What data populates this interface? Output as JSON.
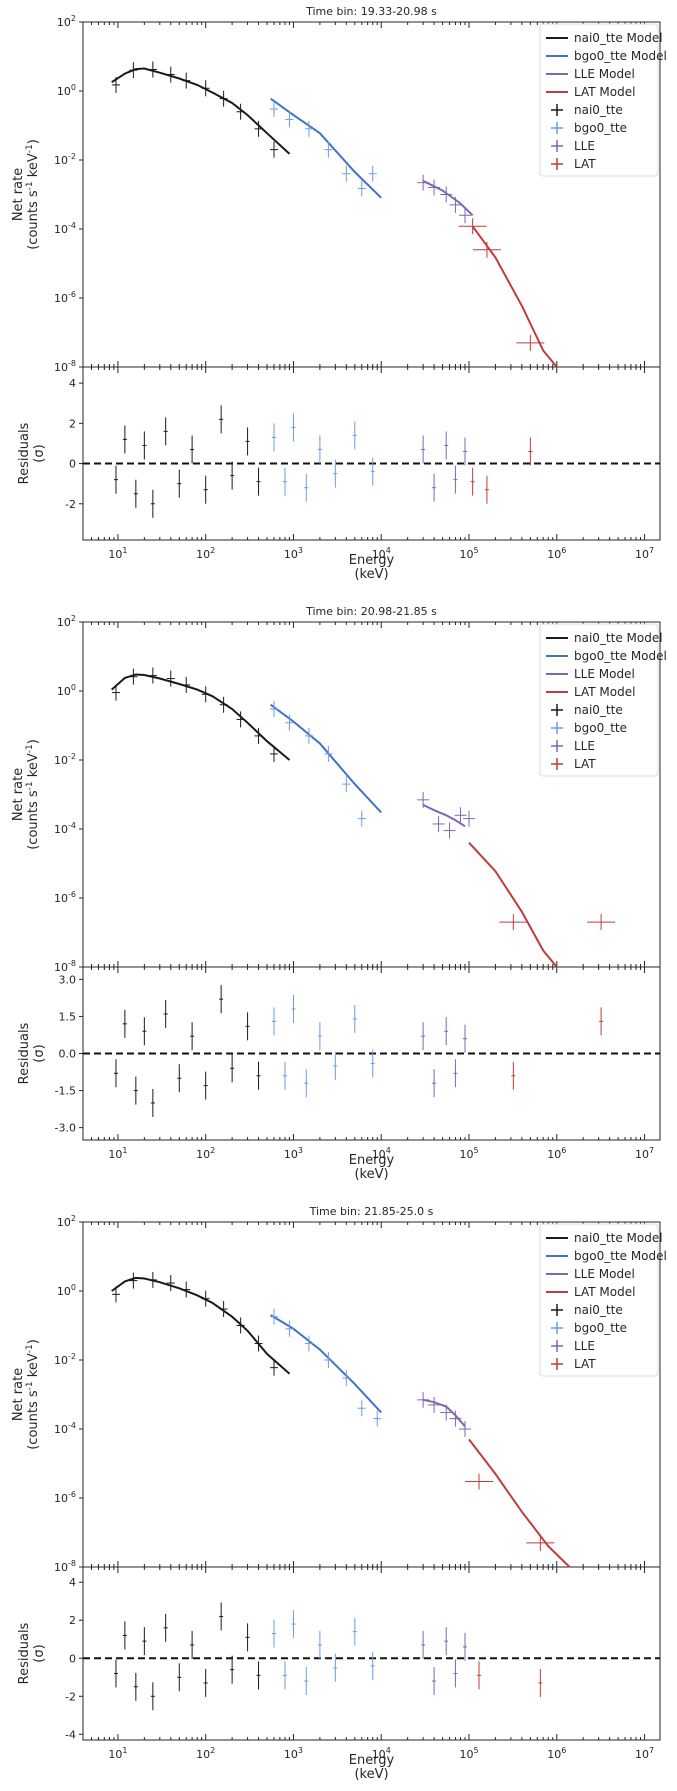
{
  "figure": {
    "x_label_line1": "Energy",
    "x_label_line2": "(keV)",
    "spectrum_ylabel_line1": "Net rate",
    "spectrum_ylabel_line2": "(counts s",
    "spectrum_ylabel_sup1": "-1",
    "spectrum_ylabel_mid": " keV",
    "spectrum_ylabel_sup2": "-1",
    "spectrum_ylabel_end": ")",
    "residual_ylabel_line1": "Residuals",
    "residual_ylabel_line2": "(σ)"
  },
  "legend": [
    "nai0_tte Model",
    "bgo0_tte Model",
    "LLE Model",
    "LAT Model",
    "nai0_tte",
    "bgo0_tte",
    "LLE",
    "LAT"
  ],
  "colors": {
    "nai0_tte": "#1a1a1a",
    "bgo0_tte": "#3b73c8",
    "bgo0_tte_points": "#6f9be0",
    "LLE": "#7b68b0",
    "LAT": "#c23b3b"
  },
  "chart_data": [
    {
      "type": "scatter",
      "title": "Time bin: 19.33-20.98 s",
      "xscale": "log",
      "xlim": [
        4,
        15000000
      ],
      "x_ticks": [
        "10^1",
        "10^2",
        "10^3",
        "10^4",
        "10^5",
        "10^6",
        "10^7"
      ],
      "spectrum": {
        "yscale": "log",
        "ylim": [
          1e-08,
          100
        ],
        "y_ticks": [
          "10^2",
          "10^0",
          "10^-2",
          "10^-4",
          "10^-6",
          "10^-8"
        ],
        "models": [
          {
            "name": "nai0_tte Model",
            "x": [
              8.5,
              12,
              16,
              20,
              30,
              50,
              80,
              120,
              200,
              300,
              500,
              900
            ],
            "y": [
              1.8,
              3.2,
              4.3,
              4.5,
              3.4,
              2.3,
              1.5,
              0.9,
              0.45,
              0.2,
              0.06,
              0.015
            ]
          },
          {
            "name": "bgo0_tte Model",
            "x": [
              550,
              1000,
              2000,
              5000,
              10000
            ],
            "y": [
              0.6,
              0.2,
              0.06,
              0.0045,
              0.0008
            ]
          },
          {
            "name": "LLE Model",
            "x": [
              30000,
              50000,
              80000,
              110000
            ],
            "y": [
              0.0025,
              0.0013,
              0.00055,
              0.00025
            ]
          },
          {
            "name": "LAT Model",
            "x": [
              110000,
              200000,
              400000,
              700000,
              1000000
            ],
            "y": [
              0.00012,
              1.5e-05,
              6e-07,
              3e-08,
              1e-08
            ]
          }
        ],
        "points": [
          {
            "name": "nai0_tte",
            "x": [
              9.5,
              15,
              25,
              40,
              60,
              100,
              160,
              250,
              400,
              600
            ],
            "y": [
              1.5,
              4,
              4.2,
              3,
              2,
              1.2,
              0.6,
              0.25,
              0.08,
              0.02
            ]
          },
          {
            "name": "bgo0_tte",
            "x": [
              600,
              900,
              1500,
              2500,
              4000,
              6000,
              8000
            ],
            "y": [
              0.3,
              0.15,
              0.08,
              0.02,
              0.004,
              0.0015,
              0.004
            ]
          },
          {
            "name": "LLE",
            "x": [
              30000,
              40000,
              55000,
              70000,
              90000
            ],
            "y": [
              0.0022,
              0.0016,
              0.001,
              0.0005,
              0.00025
            ]
          },
          {
            "name": "LAT",
            "x": [
              110000,
              160000,
              500000
            ],
            "y": [
              0.00012,
              2.5e-05,
              5e-08
            ]
          }
        ]
      },
      "residuals": {
        "ylim": [
          -3.8,
          4.8
        ],
        "y_ticks": [
          "4",
          "2",
          "0",
          "-2"
        ],
        "nai0_tte": {
          "x": [
            9.5,
            12,
            16,
            20,
            25,
            35,
            50,
            70,
            100,
            150,
            200,
            300,
            400
          ],
          "y": [
            -0.8,
            1.2,
            -1.5,
            0.9,
            -2,
            1.6,
            -1,
            0.7,
            -1.3,
            2.2,
            -0.6,
            1.1,
            -0.9
          ]
        },
        "bgo0_tte": {
          "x": [
            600,
            800,
            1000,
            1400,
            2000,
            3000,
            5000,
            8000
          ],
          "y": [
            1.3,
            -0.9,
            1.8,
            -1.2,
            0.7,
            -0.5,
            1.4,
            -0.4
          ]
        },
        "LLE": {
          "x": [
            30000,
            40000,
            55000,
            70000,
            90000
          ],
          "y": [
            0.7,
            -1.2,
            0.9,
            -0.8,
            0.6
          ]
        },
        "LAT": {
          "x": [
            110000,
            160000,
            500000
          ],
          "y": [
            -0.9,
            -1.3,
            0.6
          ]
        }
      }
    },
    {
      "type": "scatter",
      "title": "Time bin: 20.98-21.85 s",
      "xscale": "log",
      "xlim": [
        4,
        15000000
      ],
      "x_ticks": [
        "10^1",
        "10^2",
        "10^3",
        "10^4",
        "10^5",
        "10^6",
        "10^7"
      ],
      "spectrum": {
        "yscale": "log",
        "ylim": [
          1e-08,
          100
        ],
        "y_ticks": [
          "10^2",
          "10^0",
          "10^-2",
          "10^-4",
          "10^-6",
          "10^-8"
        ],
        "models": [
          {
            "name": "nai0_tte Model",
            "x": [
              8.5,
              12,
              16,
              20,
              30,
              50,
              80,
              120,
              200,
              300,
              500,
              900
            ],
            "y": [
              1.1,
              2.4,
              3,
              2.9,
              2.3,
              1.6,
              1.1,
              0.7,
              0.3,
              0.12,
              0.035,
              0.01
            ]
          },
          {
            "name": "bgo0_tte Model",
            "x": [
              550,
              1000,
              2000,
              5000,
              10000
            ],
            "y": [
              0.4,
              0.13,
              0.03,
              0.002,
              0.0003
            ]
          },
          {
            "name": "LLE Model",
            "x": [
              30000,
              40000,
              55000,
              70000,
              90000
            ],
            "y": [
              0.0005,
              0.00035,
              0.00025,
              0.00018,
              0.00012
            ]
          },
          {
            "name": "LAT Model",
            "x": [
              100000,
              200000,
              400000,
              700000,
              1000000
            ],
            "y": [
              4e-05,
              6e-06,
              4e-07,
              3e-08,
              1e-08
            ]
          }
        ],
        "points": [
          {
            "name": "nai0_tte",
            "x": [
              9.5,
              15,
              25,
              40,
              60,
              100,
              160,
              250,
              400,
              600
            ],
            "y": [
              0.9,
              2.6,
              2.8,
              2.3,
              1.5,
              0.8,
              0.4,
              0.15,
              0.05,
              0.015
            ]
          },
          {
            "name": "bgo0_tte",
            "x": [
              600,
              900,
              1500,
              2500,
              4000,
              6000
            ],
            "y": [
              0.3,
              0.12,
              0.05,
              0.015,
              0.002,
              0.0002
            ]
          },
          {
            "name": "LLE",
            "x": [
              30000,
              45000,
              60000,
              80000,
              100000
            ],
            "y": [
              0.0007,
              0.00014,
              9e-05,
              0.00025,
              0.0002
            ]
          },
          {
            "name": "LAT",
            "x": [
              320000,
              3200000
            ],
            "y": [
              2e-07,
              2e-07
            ]
          }
        ]
      },
      "residuals": {
        "ylim": [
          -3.5,
          3.5
        ],
        "y_ticks": [
          "3.0",
          "1.5",
          "0.0",
          "-1.5",
          "-3.0"
        ],
        "nai0_tte": {
          "x": [
            9.5,
            12,
            16,
            20,
            25,
            35,
            50,
            70,
            100,
            150,
            200,
            300,
            400
          ],
          "y": [
            -0.8,
            1.2,
            -1.5,
            0.9,
            -2,
            1.6,
            -1,
            0.7,
            -1.3,
            2.2,
            -0.6,
            1.1,
            -0.9
          ]
        },
        "bgo0_tte": {
          "x": [
            600,
            800,
            1000,
            1400,
            2000,
            3000,
            5000,
            8000
          ],
          "y": [
            1.3,
            -0.9,
            1.8,
            -1.2,
            0.7,
            -0.5,
            1.4,
            -0.4
          ]
        },
        "LLE": {
          "x": [
            30000,
            40000,
            55000,
            70000,
            90000
          ],
          "y": [
            0.7,
            -1.2,
            0.9,
            -0.8,
            0.6
          ]
        },
        "LAT": {
          "x": [
            320000,
            3200000
          ],
          "y": [
            -0.9,
            1.3
          ]
        }
      }
    },
    {
      "type": "scatter",
      "title": "Time bin: 21.85-25.0 s",
      "xscale": "log",
      "xlim": [
        4,
        15000000
      ],
      "x_ticks": [
        "10^1",
        "10^2",
        "10^3",
        "10^4",
        "10^5",
        "10^6",
        "10^7"
      ],
      "spectrum": {
        "yscale": "log",
        "ylim": [
          1e-08,
          100
        ],
        "y_ticks": [
          "10^2",
          "10^0",
          "10^-2",
          "10^-4",
          "10^-6",
          "10^-8"
        ],
        "models": [
          {
            "name": "nai0_tte Model",
            "x": [
              8.5,
              12,
              16,
              20,
              30,
              50,
              80,
              120,
              200,
              300,
              500,
              900
            ],
            "y": [
              1,
              1.9,
              2.4,
              2.3,
              1.8,
              1.2,
              0.75,
              0.45,
              0.18,
              0.07,
              0.015,
              0.004
            ]
          },
          {
            "name": "bgo0_tte Model",
            "x": [
              550,
              1000,
              2000,
              5000,
              10000
            ],
            "y": [
              0.2,
              0.08,
              0.02,
              0.002,
              0.0003
            ]
          },
          {
            "name": "LLE Model",
            "x": [
              30000,
              40000,
              55000,
              70000,
              90000
            ],
            "y": [
              0.0007,
              0.0006,
              0.00045,
              0.00025,
              0.00012
            ]
          },
          {
            "name": "LAT Model",
            "x": [
              100000,
              200000,
              400000,
              800000,
              1400000
            ],
            "y": [
              5e-05,
              5e-06,
              4e-07,
              4e-08,
              1e-08
            ]
          }
        ],
        "points": [
          {
            "name": "nai0_tte",
            "x": [
              9.5,
              15,
              25,
              40,
              60,
              100,
              160,
              250,
              400,
              600
            ],
            "y": [
              0.8,
              2,
              2.1,
              1.7,
              1.1,
              0.6,
              0.3,
              0.1,
              0.03,
              0.006
            ]
          },
          {
            "name": "bgo0_tte",
            "x": [
              600,
              900,
              1500,
              2500,
              4000,
              6000,
              9000
            ],
            "y": [
              0.18,
              0.08,
              0.03,
              0.01,
              0.003,
              0.0004,
              0.0002
            ]
          },
          {
            "name": "LLE",
            "x": [
              30000,
              40000,
              55000,
              70000,
              90000
            ],
            "y": [
              0.0007,
              0.0005,
              0.0003,
              0.0002,
              0.0001
            ]
          },
          {
            "name": "LAT",
            "x": [
              130000,
              650000
            ],
            "y": [
              3e-06,
              5e-08
            ]
          }
        ]
      },
      "residuals": {
        "ylim": [
          -4.3,
          4.8
        ],
        "y_ticks": [
          "4",
          "2",
          "0",
          "-2",
          "-4"
        ],
        "nai0_tte": {
          "x": [
            9.5,
            12,
            16,
            20,
            25,
            35,
            50,
            70,
            100,
            150,
            200,
            300,
            400
          ],
          "y": [
            -0.8,
            1.2,
            -1.5,
            0.9,
            -2,
            1.6,
            -1,
            0.7,
            -1.3,
            2.2,
            -0.6,
            1.1,
            -0.9
          ]
        },
        "bgo0_tte": {
          "x": [
            600,
            800,
            1000,
            1400,
            2000,
            3000,
            5000,
            8000
          ],
          "y": [
            1.3,
            -0.9,
            1.8,
            -1.2,
            0.7,
            -0.5,
            1.4,
            -0.4
          ]
        },
        "LLE": {
          "x": [
            30000,
            40000,
            55000,
            70000,
            90000
          ],
          "y": [
            0.7,
            -1.2,
            0.9,
            -0.8,
            0.6
          ]
        },
        "LAT": {
          "x": [
            130000,
            650000
          ],
          "y": [
            -0.9,
            -1.3
          ]
        }
      }
    }
  ]
}
